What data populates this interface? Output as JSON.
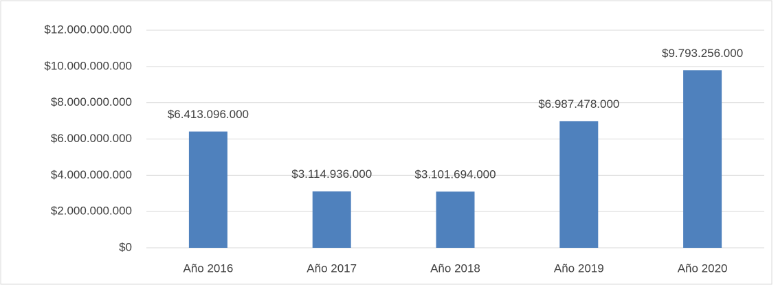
{
  "chart_data": {
    "type": "bar",
    "categories": [
      "Año 2016",
      "Año 2017",
      "Año 2018",
      "Año 2019",
      "Año 2020"
    ],
    "values": [
      6413096000,
      3114936000,
      3101694000,
      6987478000,
      9793256000
    ],
    "value_labels": [
      "$6.413.096.000",
      "$3.114.936.000",
      "$3.101.694.000",
      "$6.987.478.000",
      "$9.793.256.000"
    ],
    "color": "#4f81bd",
    "ylim": [
      0,
      12000000000
    ],
    "yticks": [
      {
        "value": 0,
        "label": "$0"
      },
      {
        "value": 2000000000,
        "label": "$2.000.000.000"
      },
      {
        "value": 4000000000,
        "label": "$4.000.000.000"
      },
      {
        "value": 6000000000,
        "label": "$6.000.000.000"
      },
      {
        "value": 8000000000,
        "label": "$8.000.000.000"
      },
      {
        "value": 10000000000,
        "label": "$10.000.000.000"
      },
      {
        "value": 12000000000,
        "label": "$12.000.000.000"
      }
    ],
    "grid": true
  }
}
